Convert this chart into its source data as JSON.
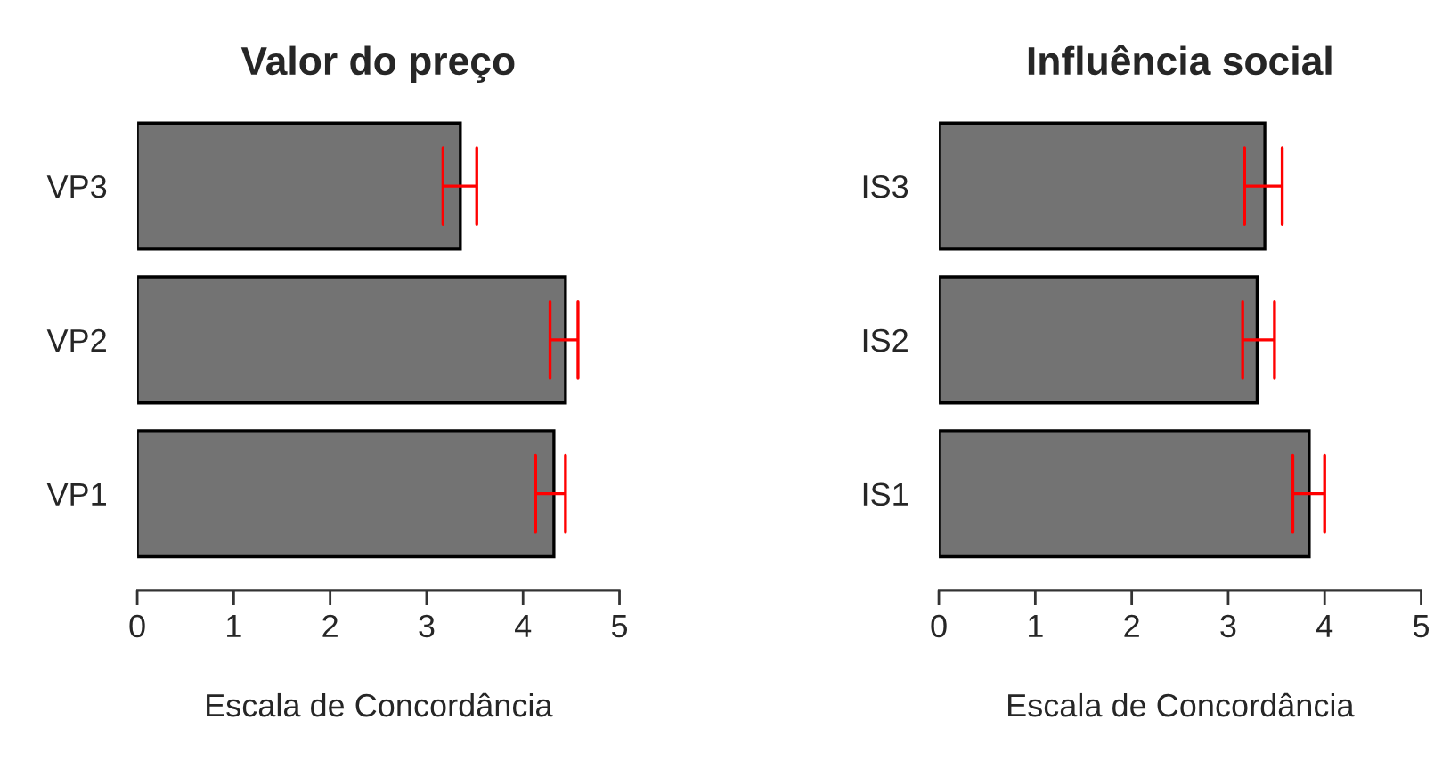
{
  "chart_data": [
    {
      "type": "bar",
      "orientation": "horizontal",
      "title": "Valor do preço",
      "xlabel": "Escala de Concordância",
      "categories": [
        "VP3",
        "VP2",
        "VP1"
      ],
      "series": [
        {
          "color": "#737373",
          "values": [
            3.35,
            4.44,
            4.32
          ],
          "errors": [
            [
              3.17,
              3.52
            ],
            [
              4.28,
              4.57
            ],
            [
              4.13,
              4.44
            ]
          ]
        }
      ],
      "xlim": [
        0,
        5
      ],
      "xticks": [
        0,
        1,
        2,
        3,
        4,
        5
      ],
      "grid": false,
      "legend": false
    },
    {
      "type": "bar",
      "orientation": "horizontal",
      "title": "Influência social",
      "xlabel": "Escala de Concordância",
      "categories": [
        "IS3",
        "IS2",
        "IS1"
      ],
      "series": [
        {
          "color": "#737373",
          "values": [
            3.38,
            3.3,
            3.84
          ],
          "errors": [
            [
              3.17,
              3.56
            ],
            [
              3.15,
              3.48
            ],
            [
              3.67,
              4.0
            ]
          ]
        }
      ],
      "xlim": [
        0,
        5
      ],
      "xticks": [
        0,
        1,
        2,
        3,
        4,
        5
      ],
      "grid": false,
      "legend": false
    }
  ]
}
